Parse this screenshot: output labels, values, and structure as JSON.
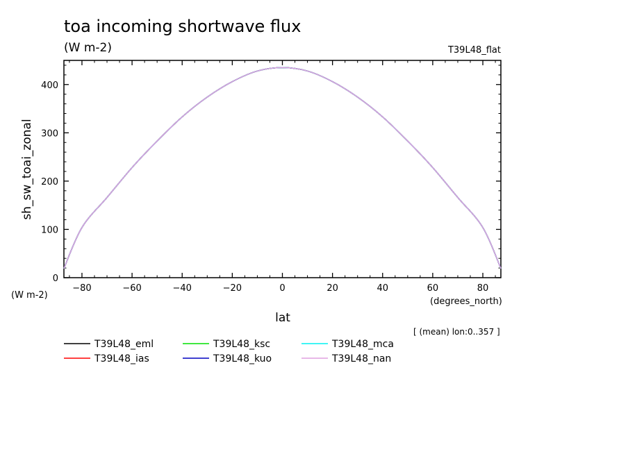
{
  "chart_data": {
    "type": "line",
    "title": "toa incoming shortwave flux",
    "subtitle": "(W m-2)",
    "run_label": "T39L48_flat",
    "xlabel": "lat",
    "xunit": "(degrees_north)",
    "ylabel": "sh_sw_toai_zonal",
    "yunit": "(W m-2)",
    "note": "[ (mean) lon:0..357 ]",
    "xlim": [
      -87.2,
      87.2
    ],
    "ylim": [
      0,
      450
    ],
    "xticks": [
      -80,
      -60,
      -40,
      -20,
      0,
      20,
      40,
      60,
      80
    ],
    "yticks": [
      0,
      100,
      200,
      300,
      400
    ],
    "grid": false,
    "legend_position": "bottom",
    "x": [
      -87.2,
      -80,
      -70,
      -60,
      -50,
      -40,
      -30,
      -20,
      -10,
      0,
      10,
      20,
      30,
      40,
      50,
      60,
      70,
      80,
      87.2
    ],
    "series": [
      {
        "name": "T39L48_eml",
        "color": "#000000",
        "values": [
          19,
          104,
          166,
          228,
          283,
          333,
          374,
          406,
          428,
          435,
          428,
          406,
          374,
          333,
          283,
          228,
          166,
          104,
          19
        ]
      },
      {
        "name": "T39L48_ias",
        "color": "#ff0000",
        "values": [
          19,
          104,
          166,
          228,
          283,
          333,
          374,
          406,
          428,
          435,
          428,
          406,
          374,
          333,
          283,
          228,
          166,
          104,
          19
        ]
      },
      {
        "name": "T39L48_ksc",
        "color": "#00e000",
        "values": [
          19,
          104,
          166,
          228,
          283,
          333,
          374,
          406,
          428,
          435,
          428,
          406,
          374,
          333,
          283,
          228,
          166,
          104,
          19
        ]
      },
      {
        "name": "T39L48_kuo",
        "color": "#0000c0",
        "values": [
          19,
          104,
          166,
          228,
          283,
          333,
          374,
          406,
          428,
          435,
          428,
          406,
          374,
          333,
          283,
          228,
          166,
          104,
          19
        ]
      },
      {
        "name": "T39L48_mca",
        "color": "#00f0f0",
        "values": [
          19,
          104,
          166,
          228,
          283,
          333,
          374,
          406,
          428,
          435,
          428,
          406,
          374,
          333,
          283,
          228,
          166,
          104,
          19
        ]
      },
      {
        "name": "T39L48_nan",
        "color": "#e0a0e0",
        "values": [
          19,
          104,
          166,
          228,
          283,
          333,
          374,
          406,
          428,
          435,
          428,
          406,
          374,
          333,
          283,
          228,
          166,
          104,
          19
        ]
      }
    ]
  }
}
